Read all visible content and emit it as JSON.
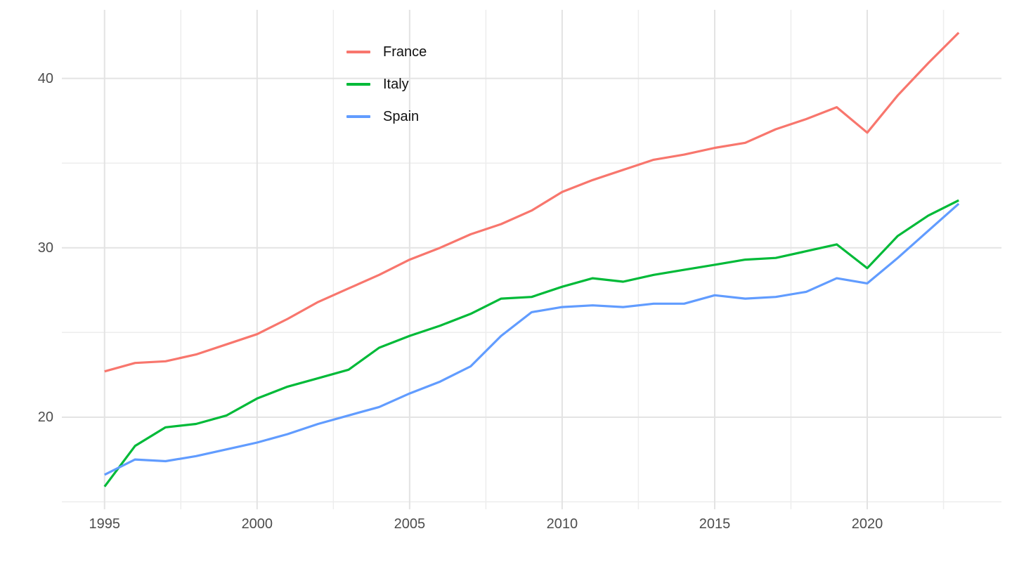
{
  "chart_data": {
    "type": "line",
    "title": "",
    "xlabel": "",
    "ylabel": "",
    "grid": true,
    "legend_position": "inside-top-left",
    "line_width": 3.2,
    "x": [
      1995,
      1996,
      1997,
      1998,
      1999,
      2000,
      2001,
      2002,
      2003,
      2004,
      2005,
      2006,
      2007,
      2008,
      2009,
      2010,
      2011,
      2012,
      2013,
      2014,
      2015,
      2016,
      2017,
      2018,
      2019,
      2020,
      2021,
      2022,
      2023
    ],
    "series": [
      {
        "name": "France",
        "color": "#F8766D",
        "values": [
          22.7,
          23.2,
          23.3,
          23.7,
          24.3,
          24.9,
          25.8,
          26.8,
          27.6,
          28.4,
          29.3,
          30.0,
          30.8,
          31.4,
          32.2,
          33.3,
          34.0,
          34.6,
          35.2,
          35.5,
          35.9,
          36.2,
          37.0,
          37.6,
          38.3,
          36.8,
          39.0,
          40.9,
          42.7
        ]
      },
      {
        "name": "Italy",
        "color": "#00BA38",
        "values": [
          15.9,
          18.3,
          19.4,
          19.6,
          20.1,
          21.1,
          21.8,
          22.3,
          22.8,
          24.1,
          24.8,
          25.4,
          26.1,
          27.0,
          27.1,
          27.7,
          28.2,
          28.0,
          28.4,
          28.7,
          29.0,
          29.3,
          29.4,
          29.8,
          30.2,
          28.8,
          30.7,
          31.9,
          32.8
        ]
      },
      {
        "name": "Spain",
        "color": "#619CFF",
        "values": [
          16.6,
          17.5,
          17.4,
          17.7,
          18.1,
          18.5,
          19.0,
          19.6,
          20.1,
          20.6,
          21.4,
          22.1,
          23.0,
          24.8,
          26.2,
          26.5,
          26.6,
          26.5,
          26.7,
          26.7,
          27.2,
          27.0,
          27.1,
          27.4,
          28.2,
          27.9,
          29.4,
          31.0,
          32.6
        ]
      }
    ],
    "x_ticks": {
      "values": [
        1995,
        2000,
        2005,
        2010,
        2015,
        2020
      ],
      "labels": [
        "1995",
        "2000",
        "2005",
        "2010",
        "2015",
        "2020"
      ]
    },
    "x_minor_ticks": [
      1997.5,
      2002.5,
      2007.5,
      2012.5,
      2017.5,
      2022.5
    ],
    "y_ticks": {
      "values": [
        20,
        30,
        40
      ],
      "labels": [
        "20",
        "30",
        "40"
      ]
    },
    "y_minor_ticks": [
      15,
      25,
      35
    ],
    "x_domain": [
      1993.6,
      2024.4
    ],
    "y_domain": [
      14.56,
      44.05
    ],
    "colors": {
      "background": "#FFFFFF",
      "grid_major": "#E3E3E3",
      "grid_minor": "#EDEDED",
      "axis_text": "#4D4D4D",
      "legend_text": "#111111"
    }
  }
}
